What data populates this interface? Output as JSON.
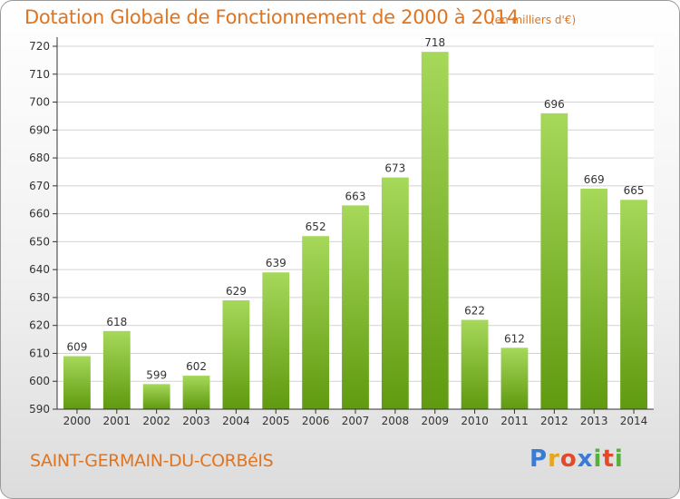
{
  "header": {
    "title": "Dotation Globale de Fonctionnement de 2000 à 2014",
    "subtitle": "(en milliers d'€)"
  },
  "footer": {
    "commune": "SAINT-GERMAIN-DU-CORBéIS",
    "logo": {
      "letters": [
        "P",
        "r",
        "o",
        "x",
        "i",
        "t",
        "i"
      ],
      "colors": [
        "#3a7bd5",
        "#e8a61a",
        "#e24a2a",
        "#3a7bd5",
        "#58b03c",
        "#e24a2a",
        "#58b03c"
      ]
    }
  },
  "chart_data": {
    "type": "bar",
    "title": "Dotation Globale de Fonctionnement de 2000 à 2014",
    "subtitle": "(en milliers d'€)",
    "xlabel": "",
    "ylabel": "",
    "categories": [
      "2000",
      "2001",
      "2002",
      "2003",
      "2004",
      "2005",
      "2006",
      "2007",
      "2008",
      "2009",
      "2010",
      "2011",
      "2012",
      "2013",
      "2014"
    ],
    "values": [
      609,
      618,
      599,
      602,
      629,
      639,
      652,
      663,
      673,
      718,
      622,
      612,
      696,
      669,
      665
    ],
    "ylim": [
      590,
      720
    ],
    "yticks": [
      590,
      600,
      610,
      620,
      630,
      640,
      650,
      660,
      670,
      680,
      690,
      700,
      710,
      720
    ],
    "grid": true,
    "legend": "none",
    "colors": {
      "bar_top": "#a6d85a",
      "bar_bottom": "#5f9a0f",
      "text": "#e0741f",
      "axis": "#333333",
      "grid": "#d2d2d2"
    }
  }
}
